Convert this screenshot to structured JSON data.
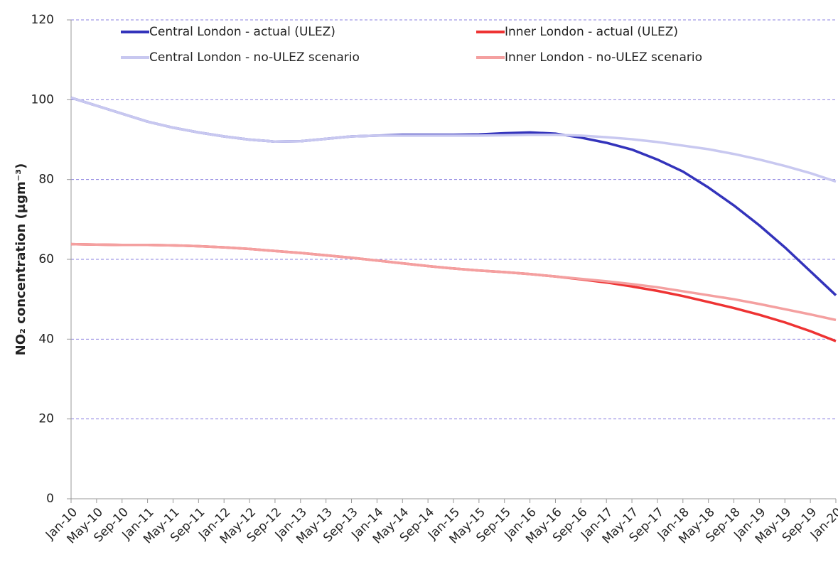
{
  "chart_data": {
    "type": "line",
    "y_label": "NO₂ concentration (µgm⁻³)",
    "categories": [
      "Jan-10",
      "May-10",
      "Sep-10",
      "Jan-11",
      "May-11",
      "Sep-11",
      "Jan-12",
      "May-12",
      "Sep-12",
      "Jan-13",
      "May-13",
      "Sep-13",
      "Jan-14",
      "May-14",
      "Sep-14",
      "Jan-15",
      "May-15",
      "Sep-15",
      "Jan-16",
      "May-16",
      "Sep-16",
      "Jan-17",
      "May-17",
      "Sep-17",
      "Jan-18",
      "May-18",
      "Sep-18",
      "Jan-19",
      "May-19",
      "Sep-19",
      "Jan-20"
    ],
    "series": [
      {
        "name": "Central London - actual (ULEZ)",
        "color": "#3333bb",
        "values": [
          100.5,
          98.5,
          96.5,
          94.5,
          93,
          91.8,
          90.8,
          90,
          89.5,
          89.6,
          90.2,
          90.8,
          91,
          91.2,
          91.2,
          91.2,
          91.3,
          91.6,
          91.8,
          91.5,
          90.5,
          89.2,
          87.5,
          85,
          82,
          78,
          73.5,
          68.5,
          63,
          57,
          51
        ]
      },
      {
        "name": "Inner London - actual (ULEZ)",
        "color": "#ee3333",
        "values": [
          63.8,
          63.7,
          63.6,
          63.6,
          63.5,
          63.3,
          63,
          62.6,
          62.1,
          61.6,
          61,
          60.4,
          59.7,
          59,
          58.3,
          57.7,
          57.2,
          56.8,
          56.3,
          55.7,
          55,
          54.2,
          53.2,
          52.1,
          50.8,
          49.3,
          47.8,
          46.1,
          44.2,
          42,
          39.5
        ]
      },
      {
        "name": "Central London - no-ULEZ scenario",
        "color": "#c8c8f0",
        "values": [
          100.5,
          98.5,
          96.5,
          94.5,
          93,
          91.8,
          90.8,
          90,
          89.5,
          89.6,
          90.2,
          90.8,
          91,
          91,
          91,
          91,
          91,
          91.1,
          91.2,
          91.2,
          91,
          90.6,
          90.1,
          89.4,
          88.5,
          87.6,
          86.4,
          85,
          83.4,
          81.6,
          79.5
        ]
      },
      {
        "name": "Inner London - no-ULEZ scenario",
        "color": "#f4a0a0",
        "values": [
          63.8,
          63.7,
          63.6,
          63.6,
          63.5,
          63.3,
          63,
          62.6,
          62.1,
          61.6,
          61,
          60.4,
          59.7,
          59,
          58.3,
          57.7,
          57.2,
          56.8,
          56.3,
          55.7,
          55.1,
          54.5,
          53.8,
          53,
          52,
          51,
          50,
          48.8,
          47.5,
          46.2,
          44.8
        ]
      }
    ],
    "ylim": [
      0,
      120
    ],
    "yticks": [
      0,
      20,
      40,
      60,
      80,
      100,
      120
    ],
    "grid": true
  }
}
